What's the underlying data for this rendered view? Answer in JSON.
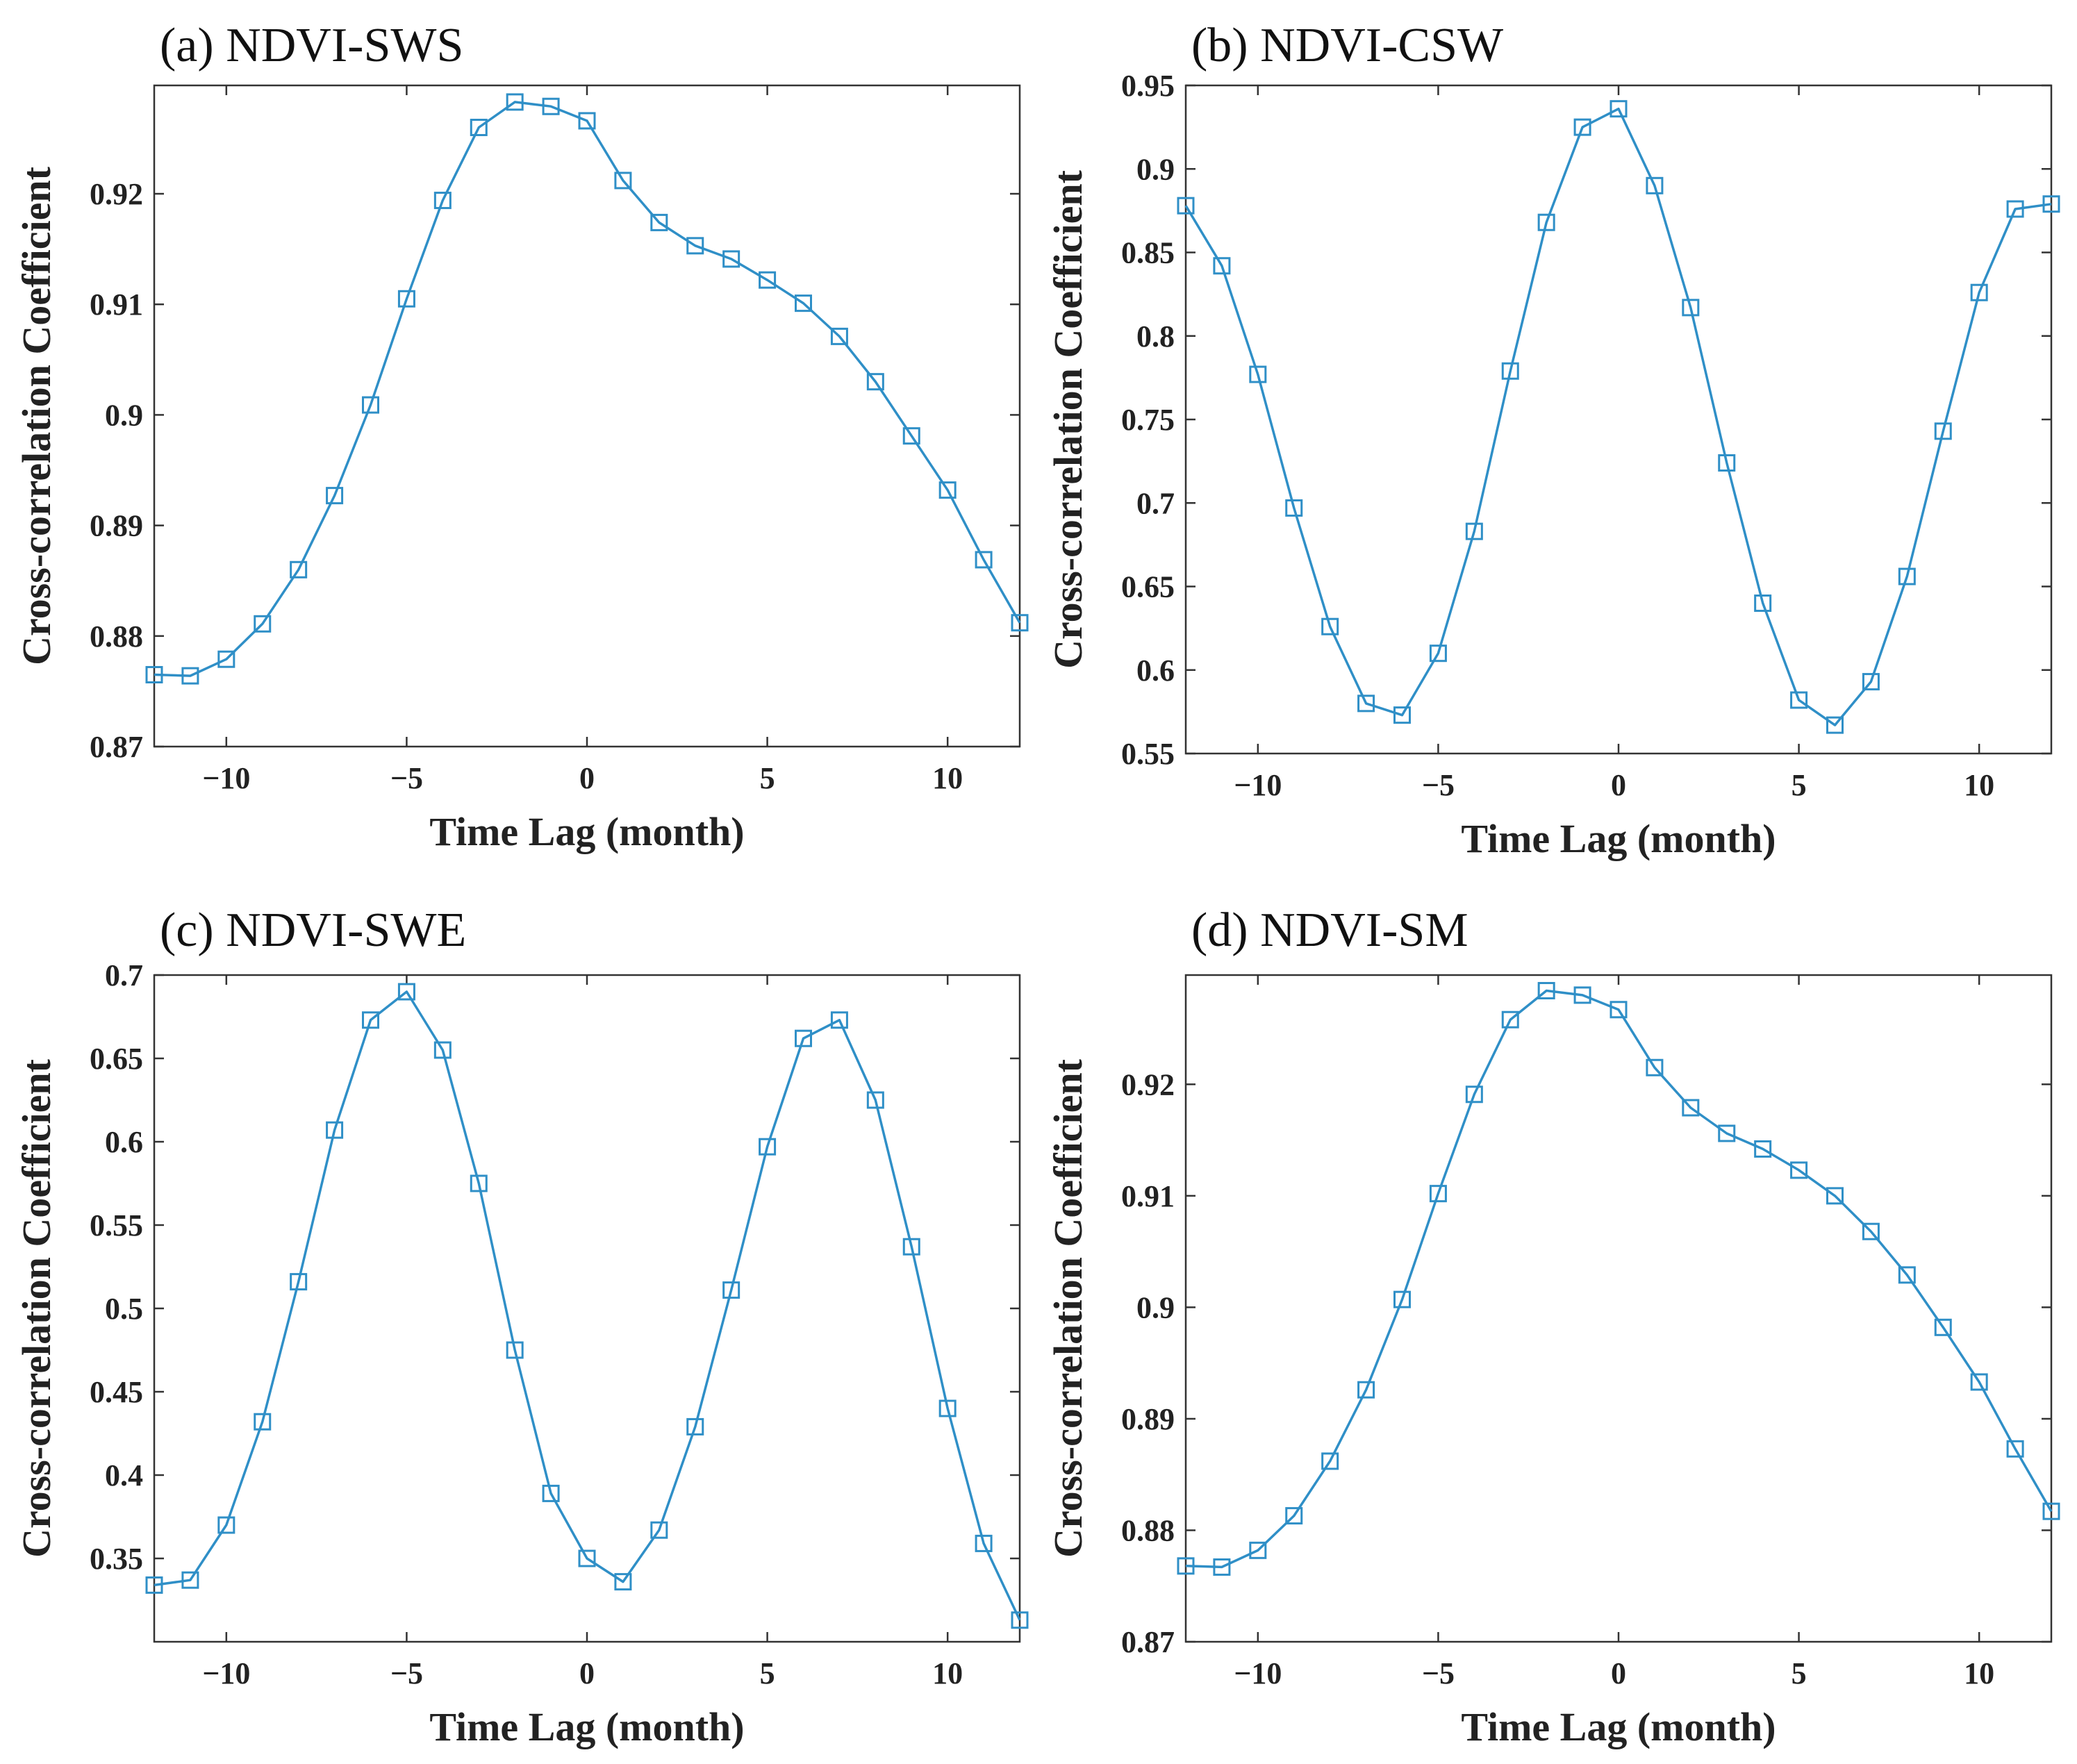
{
  "colors": {
    "series": "#2f8fc7",
    "axis": "#333333",
    "text": "#222222"
  },
  "chart_data": [
    {
      "type": "line",
      "title": "(a) NDVI-SWS",
      "xlabel": "Time Lag (month)",
      "ylabel": "Cross-correlation Coefficient",
      "xlim": [
        -12,
        12
      ],
      "ylim": [
        0.87,
        0.9298
      ],
      "xticks": [
        -10,
        -5,
        0,
        5,
        10
      ],
      "xtick_labels": [
        "−10",
        "−5",
        "0",
        "5",
        "10"
      ],
      "yticks": [
        0.87,
        0.88,
        0.89,
        0.9,
        0.91,
        0.92
      ],
      "ytick_labels": [
        "0.87",
        "0.88",
        "0.89",
        "0.9",
        "0.91",
        "0.92"
      ],
      "marker": "square",
      "x": [
        -12,
        -11,
        -10,
        -9,
        -8,
        -7,
        -6,
        -5,
        -4,
        -3,
        -2,
        -1,
        0,
        1,
        2,
        3,
        4,
        5,
        6,
        7,
        8,
        9,
        10,
        11,
        12
      ],
      "values": [
        0.8765,
        0.8764,
        0.8779,
        0.8811,
        0.886,
        0.8927,
        0.9009,
        0.9105,
        0.9194,
        0.926,
        0.9283,
        0.9279,
        0.9266,
        0.9212,
        0.9174,
        0.9153,
        0.9141,
        0.9122,
        0.9101,
        0.9071,
        0.903,
        0.8981,
        0.8932,
        0.8869,
        0.8812
      ]
    },
    {
      "type": "line",
      "title": "(b) NDVI-CSW",
      "xlabel": "Time Lag (month)",
      "ylabel": "Cross-correlation Coefficient",
      "xlim": [
        -12,
        12
      ],
      "ylim": [
        0.55,
        0.95
      ],
      "xticks": [
        -10,
        -5,
        0,
        5,
        10
      ],
      "xtick_labels": [
        "−10",
        "−5",
        "0",
        "5",
        "10"
      ],
      "yticks": [
        0.55,
        0.6,
        0.65,
        0.7,
        0.75,
        0.8,
        0.85,
        0.9,
        0.95
      ],
      "ytick_labels": [
        "0.55",
        "0.6",
        "0.65",
        "0.7",
        "0.75",
        "0.8",
        "0.85",
        "0.9",
        "0.95"
      ],
      "marker": "square",
      "x": [
        -12,
        -11,
        -10,
        -9,
        -8,
        -7,
        -6,
        -5,
        -4,
        -3,
        -2,
        -1,
        0,
        1,
        2,
        3,
        4,
        5,
        6,
        7,
        8,
        9,
        10,
        11,
        12
      ],
      "values": [
        0.878,
        0.842,
        0.777,
        0.697,
        0.626,
        0.58,
        0.573,
        0.61,
        0.683,
        0.779,
        0.868,
        0.925,
        0.936,
        0.89,
        0.817,
        0.724,
        0.64,
        0.582,
        0.567,
        0.593,
        0.656,
        0.743,
        0.826,
        0.876,
        0.879
      ]
    },
    {
      "type": "line",
      "title": "(c) NDVI-SWE",
      "xlabel": "Time Lag (month)",
      "ylabel": "Cross-correlation Coefficient",
      "xlim": [
        -12,
        12
      ],
      "ylim": [
        0.3,
        0.7
      ],
      "xticks": [
        -10,
        -5,
        0,
        5,
        10
      ],
      "xtick_labels": [
        "−10",
        "−5",
        "0",
        "5",
        "10"
      ],
      "yticks": [
        0.35,
        0.4,
        0.45,
        0.5,
        0.55,
        0.6,
        0.65,
        0.7
      ],
      "ytick_labels": [
        "0.35",
        "0.4",
        "0.45",
        "0.5",
        "0.55",
        "0.6",
        "0.65",
        "0.7"
      ],
      "marker": "square",
      "x": [
        -12,
        -11,
        -10,
        -9,
        -8,
        -7,
        -6,
        -5,
        -4,
        -3,
        -2,
        -1,
        0,
        1,
        2,
        3,
        4,
        5,
        6,
        7,
        8,
        9,
        10,
        11,
        12
      ],
      "values": [
        0.334,
        0.337,
        0.37,
        0.432,
        0.516,
        0.607,
        0.673,
        0.69,
        0.655,
        0.575,
        0.475,
        0.389,
        0.35,
        0.336,
        0.367,
        0.429,
        0.511,
        0.597,
        0.662,
        0.673,
        0.625,
        0.537,
        0.44,
        0.359,
        0.313
      ]
    },
    {
      "type": "line",
      "title": "(d) NDVI-SM",
      "xlabel": "Time Lag (month)",
      "ylabel": "Cross-correlation Coefficient",
      "xlim": [
        -12,
        12
      ],
      "ylim": [
        0.87,
        0.9298
      ],
      "xticks": [
        -10,
        -5,
        0,
        5,
        10
      ],
      "xtick_labels": [
        "−10",
        "−5",
        "0",
        "5",
        "10"
      ],
      "yticks": [
        0.87,
        0.88,
        0.89,
        0.9,
        0.91,
        0.92
      ],
      "ytick_labels": [
        "0.87",
        "0.88",
        "0.89",
        "0.9",
        "0.91",
        "0.92"
      ],
      "marker": "square",
      "x": [
        -12,
        -11,
        -10,
        -9,
        -8,
        -7,
        -6,
        -5,
        -4,
        -3,
        -2,
        -1,
        0,
        1,
        2,
        3,
        4,
        5,
        6,
        7,
        8,
        9,
        10,
        11,
        12
      ],
      "values": [
        0.8768,
        0.8767,
        0.8782,
        0.8813,
        0.8862,
        0.8926,
        0.9007,
        0.9102,
        0.9191,
        0.9258,
        0.9284,
        0.928,
        0.9267,
        0.9215,
        0.9179,
        0.9156,
        0.9142,
        0.9123,
        0.91,
        0.9068,
        0.9029,
        0.8982,
        0.8933,
        0.8873,
        0.8817
      ]
    }
  ]
}
